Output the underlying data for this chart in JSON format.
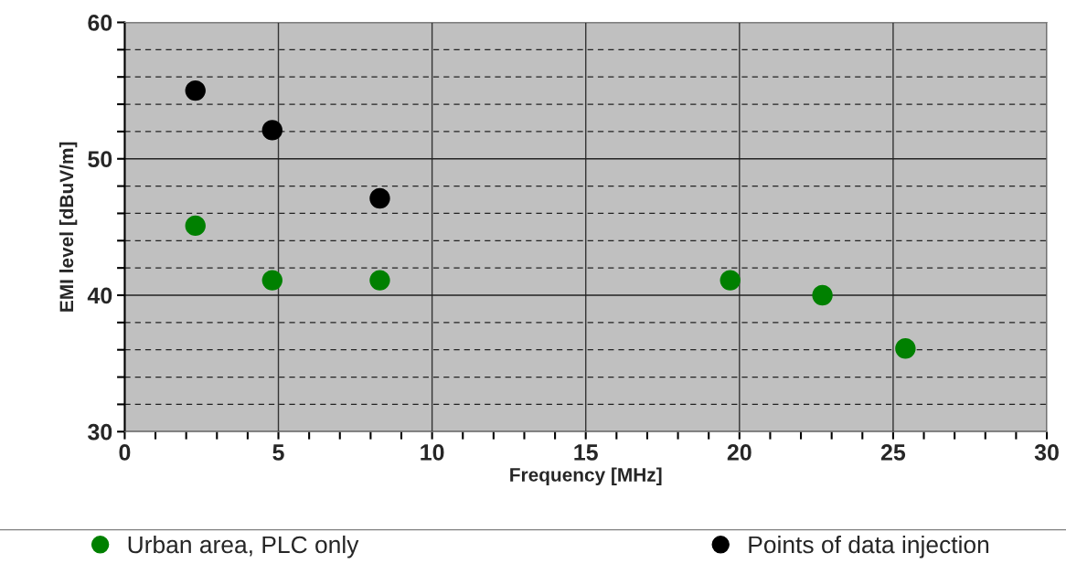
{
  "chart_data": {
    "type": "scatter",
    "xlabel": "Frequency [MHz]",
    "ylabel": "EMI level [dBuV/m]",
    "series": [
      {
        "name": "Urban area, PLC only",
        "color": "#008000",
        "x": [
          2.3,
          4.8,
          8.3,
          19.7,
          22.7,
          25.4
        ],
        "values": [
          45.1,
          41.1,
          41.1,
          41.1,
          40.0,
          36.1
        ]
      },
      {
        "name": "Points of data injection",
        "color": "#000000",
        "x": [
          2.3,
          4.8,
          8.3
        ],
        "values": [
          55.0,
          52.1,
          47.1
        ]
      }
    ],
    "xlim": [
      0,
      30
    ],
    "ylim": [
      30,
      60
    ],
    "xticks": [
      0,
      {
        "value": 1,
        "label": null
      },
      {
        "value": 2,
        "label": null
      },
      {
        "value": 3,
        "label": null
      },
      {
        "value": 4,
        "label": null
      },
      5,
      {
        "value": 6,
        "label": null
      },
      {
        "value": 7,
        "label": null
      },
      {
        "value": 8,
        "label": null
      },
      {
        "value": 9,
        "label": null
      },
      10,
      {
        "value": 11,
        "label": null
      },
      {
        "value": 12,
        "label": null
      },
      {
        "value": 13,
        "label": null
      },
      {
        "value": 14,
        "label": null
      },
      15,
      {
        "value": 16,
        "label": null
      },
      {
        "value": 17,
        "label": null
      },
      {
        "value": 18,
        "label": null
      },
      {
        "value": 19,
        "label": null
      },
      20,
      {
        "value": 21,
        "label": null
      },
      {
        "value": 22,
        "label": null
      },
      {
        "value": 23,
        "label": null
      },
      {
        "value": 24,
        "label": null
      },
      25,
      {
        "value": 26,
        "label": null
      },
      {
        "value": 27,
        "label": null
      },
      {
        "value": 28,
        "label": null
      },
      {
        "value": 29,
        "label": null
      },
      30
    ],
    "yticks": [
      30,
      {
        "value": 32,
        "label": null
      },
      {
        "value": 34,
        "label": null
      },
      {
        "value": 36,
        "label": null
      },
      {
        "value": 38,
        "label": null
      },
      40,
      {
        "value": 42,
        "label": null
      },
      {
        "value": 44,
        "label": null
      },
      {
        "value": 46,
        "label": null
      },
      {
        "value": 48,
        "label": null
      },
      50,
      {
        "value": 52,
        "label": null
      },
      {
        "value": 54,
        "label": null
      },
      {
        "value": 56,
        "label": null
      },
      {
        "value": 58,
        "label": null
      },
      60
    ],
    "grid": true,
    "legend": "bottom",
    "marker": "circle"
  }
}
